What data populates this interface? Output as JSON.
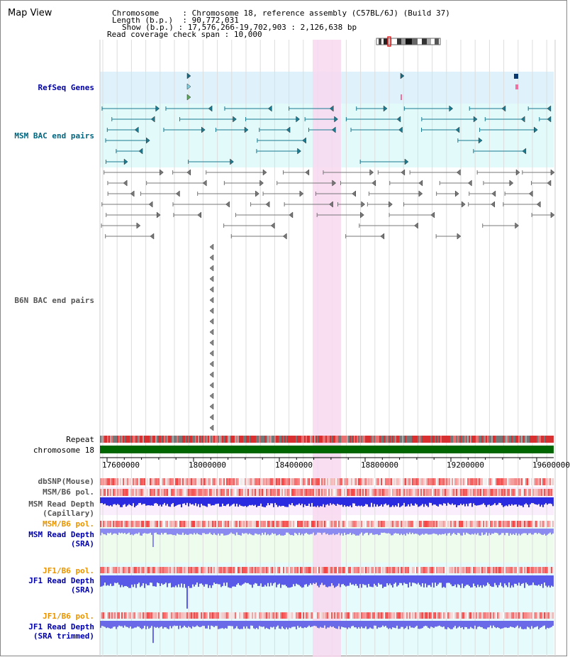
{
  "window": {
    "title": "Map View"
  },
  "info": {
    "chromosome_key": "Chromosome",
    "chromosome_val": "Chromosome 18, reference assembly (C57BL/6J) (Build 37)",
    "length_key": "Length (b.p.)",
    "length_val": "90,772,031",
    "show_key": "Show (b.p.)",
    "show_val": "17,576,266-19,702,903 : 2,126,638 bp",
    "coverage_key": "Read coverage check span",
    "coverage_val": "10,000"
  },
  "tracks": {
    "refseq": "RefSeq Genes",
    "msm_bac": "MSM BAC end pairs",
    "b6n_bac": "B6N BAC end pairs",
    "repeat": "Repeat",
    "chromosome": "chromosome 18",
    "dbsnp": "dbSNP(Mouse)",
    "msm_b6_pol_1": "MSM/B6 pol.",
    "msm_depth_cap_1": "MSM Read Depth",
    "msm_depth_cap_2": "(Capillary)",
    "msm_b6_pol_2": "MSM/B6 pol.",
    "msm_depth_sra_1": "MSM Read Depth",
    "msm_depth_sra_2": "(SRA)",
    "jf1_b6_pol_1": "JF1/B6 pol.",
    "jf1_depth_sra_1": "JF1 Read Depth",
    "jf1_depth_sra_2": "(SRA)",
    "jf1_b6_pol_2": "JF1/B6 pol.",
    "jf1_depth_trim_1": "JF1 Read Depth",
    "jf1_depth_trim_2": "(SRA trimmed)"
  },
  "axis_ticks": [
    "17600000",
    "18000000",
    "18400000",
    "18800000",
    "19200000",
    "19600000"
  ],
  "colors": {
    "highlight": "#f8d8f0",
    "refseq_bg": "#dff2fb",
    "msm_bg": "#e2fafa",
    "chromosome_bar": "#006600",
    "depth_blue": "#3a3ae8",
    "pol_red": "#e83030"
  }
}
